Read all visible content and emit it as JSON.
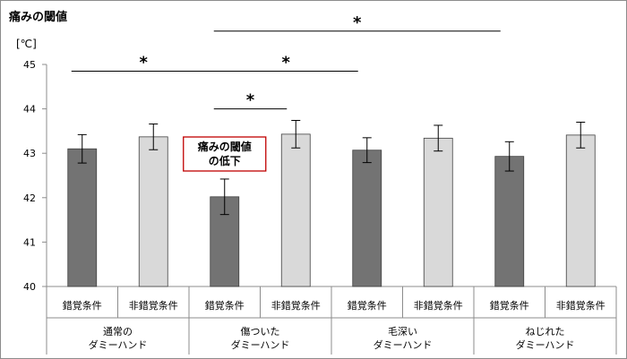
{
  "chart_data": {
    "type": "bar",
    "title": "痛みの閾値",
    "ylabel": "[℃]",
    "ylim": [
      40,
      45
    ],
    "yticks": [
      40,
      41,
      42,
      43,
      44,
      45
    ],
    "groups": [
      "通常の\nダミーハンド",
      "傷ついた\nダミーハンド",
      "毛深い\nダミーハンド",
      "ねじれた\nダミーハンド"
    ],
    "categories": [
      "錯覚条件",
      "非錯覚条件",
      "錯覚条件",
      "非錯覚条件",
      "錯覚条件",
      "非錯覚条件",
      "錯覚条件",
      "非錯覚条件"
    ],
    "values": [
      43.1,
      43.37,
      42.02,
      43.43,
      43.07,
      43.34,
      42.93,
      43.41
    ],
    "errors": [
      0.32,
      0.29,
      0.4,
      0.31,
      0.28,
      0.29,
      0.33,
      0.29
    ],
    "colors": {
      "illusion": "#737373",
      "non_illusion": "#d9d9d9",
      "annotation": "#c00000"
    },
    "significance": [
      {
        "from": 0,
        "to": 2,
        "y": 44.85,
        "label": "*"
      },
      {
        "from": 2,
        "to": 3,
        "y": 44.0,
        "label": "*"
      },
      {
        "from": 2,
        "to": 4,
        "y": 44.85,
        "label": "*"
      },
      {
        "from": 2,
        "to": 6,
        "y": 45.75,
        "label": "*"
      }
    ],
    "annotation": {
      "text": [
        "痛みの閾値",
        "の低下"
      ],
      "bar_index": 2
    }
  }
}
